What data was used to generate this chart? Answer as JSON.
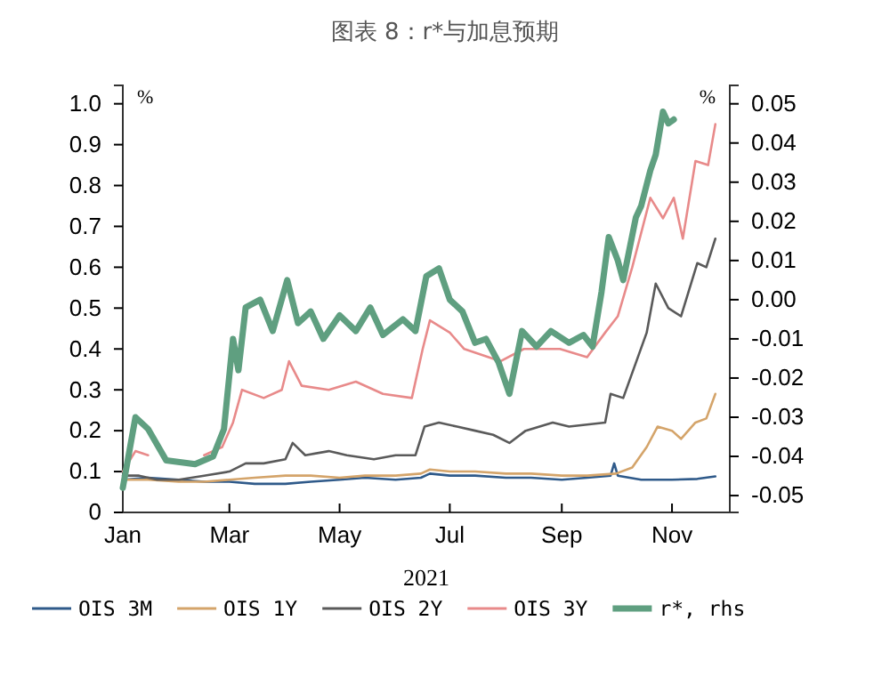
{
  "chart_data": {
    "type": "line",
    "title": "图表 8：r*与加息预期",
    "xlabel": "2021",
    "ylabel": "%",
    "y2label": "%",
    "xlim": [
      "2021-01-01",
      "2021-12-03"
    ],
    "xticks": [
      {
        "value": "2021-01-01",
        "label": "Jan"
      },
      {
        "value": "2021-03-01",
        "label": "Mar"
      },
      {
        "value": "2021-05-01",
        "label": "May"
      },
      {
        "value": "2021-07-01",
        "label": "Jul"
      },
      {
        "value": "2021-09-01",
        "label": "Sep"
      },
      {
        "value": "2021-11-01",
        "label": "Nov"
      }
    ],
    "ylim": [
      0,
      1.045
    ],
    "yticks": [
      0,
      {
        "value": 0.1,
        "label": "0.1"
      },
      {
        "value": 0.2,
        "label": "0.2"
      },
      {
        "value": 0.3,
        "label": "0.3"
      },
      {
        "value": 0.4,
        "label": "0.4"
      },
      {
        "value": 0.5,
        "label": "0.5"
      },
      {
        "value": 0.6,
        "label": "0.6"
      },
      {
        "value": 0.7,
        "label": "0.7"
      },
      {
        "value": 0.8,
        "label": "0.8"
      },
      {
        "value": 0.9,
        "label": "0.9"
      },
      {
        "value": 1,
        "label": "1.0"
      }
    ],
    "y2lim": [
      -0.0543,
      0.0547
    ],
    "y2ticks": [
      {
        "value": -0.05,
        "label": "-0.05"
      },
      {
        "value": -0.04,
        "label": "-0.04"
      },
      {
        "value": -0.03,
        "label": "-0.03"
      },
      {
        "value": -0.02,
        "label": "-0.02"
      },
      {
        "value": -0.01,
        "label": "-0.01"
      },
      {
        "value": 0,
        "label": "0.00"
      },
      {
        "value": 0.01,
        "label": "0.01"
      },
      {
        "value": 0.02,
        "label": "0.02"
      },
      {
        "value": 0.03,
        "label": "0.03"
      },
      {
        "value": 0.04,
        "label": "0.04"
      },
      {
        "value": 0.05,
        "label": "0.05"
      }
    ],
    "grid": false,
    "legend": "bottom",
    "marker": "none",
    "line_style": "solid",
    "series": [
      {
        "name": "OIS 3M",
        "color": "#2f5a8a",
        "x": [
          "2021-01-01",
          "2021-01-15",
          "2021-02-01",
          "2021-02-15",
          "2021-03-01",
          "2021-03-15",
          "2021-04-01",
          "2021-04-15",
          "2021-05-01",
          "2021-05-15",
          "2021-06-01",
          "2021-06-15",
          "2021-06-20",
          "2021-07-01",
          "2021-07-15",
          "2021-08-01",
          "2021-08-15",
          "2021-09-01",
          "2021-09-15",
          "2021-09-28",
          "2021-09-30",
          "2021-10-02",
          "2021-10-15",
          "2021-11-01",
          "2021-11-15",
          "2021-11-25"
        ],
        "values": [
          0.08,
          0.085,
          0.08,
          0.075,
          0.075,
          0.07,
          0.07,
          0.075,
          0.08,
          0.085,
          0.08,
          0.085,
          0.095,
          0.09,
          0.09,
          0.085,
          0.085,
          0.08,
          0.085,
          0.09,
          0.12,
          0.09,
          0.08,
          0.08,
          0.082,
          0.088
        ]
      },
      {
        "name": "OIS 1Y",
        "color": "#d4a46a",
        "x": [
          "2021-01-01",
          "2021-01-15",
          "2021-02-01",
          "2021-02-15",
          "2021-03-01",
          "2021-03-15",
          "2021-04-01",
          "2021-04-15",
          "2021-05-01",
          "2021-05-15",
          "2021-06-01",
          "2021-06-15",
          "2021-06-20",
          "2021-07-01",
          "2021-07-15",
          "2021-08-01",
          "2021-08-15",
          "2021-09-01",
          "2021-09-15",
          "2021-10-01",
          "2021-10-10",
          "2021-10-18",
          "2021-10-24",
          "2021-11-01",
          "2021-11-06",
          "2021-11-14",
          "2021-11-20",
          "2021-11-25"
        ],
        "values": [
          0.08,
          0.08,
          0.075,
          0.075,
          0.08,
          0.085,
          0.09,
          0.09,
          0.085,
          0.09,
          0.09,
          0.095,
          0.105,
          0.1,
          0.1,
          0.095,
          0.095,
          0.09,
          0.09,
          0.095,
          0.11,
          0.16,
          0.21,
          0.2,
          0.18,
          0.22,
          0.23,
          0.29
        ]
      },
      {
        "name": "OIS 2Y",
        "color": "#5a5a5a",
        "x": [
          "2021-01-01",
          "2021-01-10",
          "2021-01-20",
          "2021-02-01",
          "2021-02-15",
          "2021-03-01",
          "2021-03-10",
          "2021-03-20",
          "2021-04-01",
          "2021-04-05",
          "2021-04-12",
          "2021-04-25",
          "2021-05-05",
          "2021-05-20",
          "2021-06-01",
          "2021-06-12",
          "2021-06-17",
          "2021-06-25",
          "2021-07-05",
          "2021-07-15",
          "2021-07-25",
          "2021-08-03",
          "2021-08-12",
          "2021-08-27",
          "2021-09-05",
          "2021-09-25",
          "2021-09-28",
          "2021-10-05",
          "2021-10-18",
          "2021-10-23",
          "2021-10-30",
          "2021-11-06",
          "2021-11-15",
          "2021-11-20",
          "2021-11-25"
        ],
        "values": [
          0.09,
          0.09,
          0.08,
          0.08,
          0.09,
          0.1,
          0.12,
          0.12,
          0.13,
          0.17,
          0.14,
          0.15,
          0.14,
          0.13,
          0.14,
          0.14,
          0.21,
          0.22,
          0.21,
          0.2,
          0.19,
          0.17,
          0.2,
          0.22,
          0.21,
          0.22,
          0.29,
          0.28,
          0.44,
          0.56,
          0.5,
          0.48,
          0.61,
          0.6,
          0.67
        ]
      },
      {
        "name": "OIS 3Y",
        "color": "#e88a8a",
        "x": [
          "2021-01-01",
          "2021-01-08",
          "2021-01-15",
          "2021-02-01",
          "2021-02-15",
          "2021-02-25",
          "2021-03-03",
          "2021-03-08",
          "2021-03-20",
          "2021-03-30",
          "2021-04-03",
          "2021-04-10",
          "2021-04-25",
          "2021-05-10",
          "2021-05-25",
          "2021-06-10",
          "2021-06-16",
          "2021-06-20",
          "2021-07-01",
          "2021-07-09",
          "2021-07-29",
          "2021-08-11",
          "2021-08-31",
          "2021-09-15",
          "2021-09-25",
          "2021-10-02",
          "2021-10-10",
          "2021-10-20",
          "2021-10-27",
          "2021-11-02",
          "2021-11-07",
          "2021-11-14",
          "2021-11-21",
          "2021-11-25"
        ],
        "values": [
          0.1,
          0.15,
          0.14,
          null,
          0.14,
          0.16,
          0.22,
          0.3,
          0.28,
          0.3,
          0.37,
          0.31,
          0.3,
          0.32,
          0.29,
          0.28,
          0.4,
          0.47,
          0.44,
          0.4,
          0.37,
          0.4,
          0.4,
          0.38,
          0.44,
          0.48,
          0.6,
          0.77,
          0.72,
          0.77,
          0.67,
          0.86,
          0.85,
          0.95
        ]
      },
      {
        "name": "r*, rhs",
        "color": "#5f9f80",
        "axis": "y2",
        "x": [
          "2021-01-01",
          "2021-01-08",
          "2021-01-15",
          "2021-01-25",
          "2021-02-10",
          "2021-02-20",
          "2021-02-26",
          "2021-03-03",
          "2021-03-06",
          "2021-03-10",
          "2021-03-18",
          "2021-03-25",
          "2021-04-02",
          "2021-04-08",
          "2021-04-15",
          "2021-04-22",
          "2021-05-01",
          "2021-05-10",
          "2021-05-18",
          "2021-05-25",
          "2021-06-05",
          "2021-06-12",
          "2021-06-18",
          "2021-06-25",
          "2021-07-01",
          "2021-07-08",
          "2021-07-15",
          "2021-07-21",
          "2021-07-28",
          "2021-08-03",
          "2021-08-10",
          "2021-08-18",
          "2021-08-26",
          "2021-09-05",
          "2021-09-13",
          "2021-09-18",
          "2021-09-23",
          "2021-09-27",
          "2021-10-02",
          "2021-10-05",
          "2021-10-12",
          "2021-10-15",
          "2021-10-20",
          "2021-10-23",
          "2021-10-27",
          "2021-10-30",
          "2021-11-02"
        ],
        "values": [
          -0.048,
          -0.03,
          -0.033,
          -0.041,
          -0.042,
          -0.04,
          -0.033,
          -0.01,
          -0.018,
          -0.002,
          0,
          -0.008,
          0.005,
          -0.006,
          -0.003,
          -0.01,
          -0.004,
          -0.008,
          -0.002,
          -0.009,
          -0.005,
          -0.008,
          0.006,
          0.008,
          0,
          -0.003,
          -0.011,
          -0.01,
          -0.016,
          -0.024,
          -0.008,
          -0.012,
          -0.008,
          -0.011,
          -0.009,
          -0.012,
          0.002,
          0.016,
          0.01,
          0.005,
          0.021,
          0.024,
          0.033,
          0.037,
          0.048,
          0.045,
          0.046
        ]
      }
    ]
  }
}
